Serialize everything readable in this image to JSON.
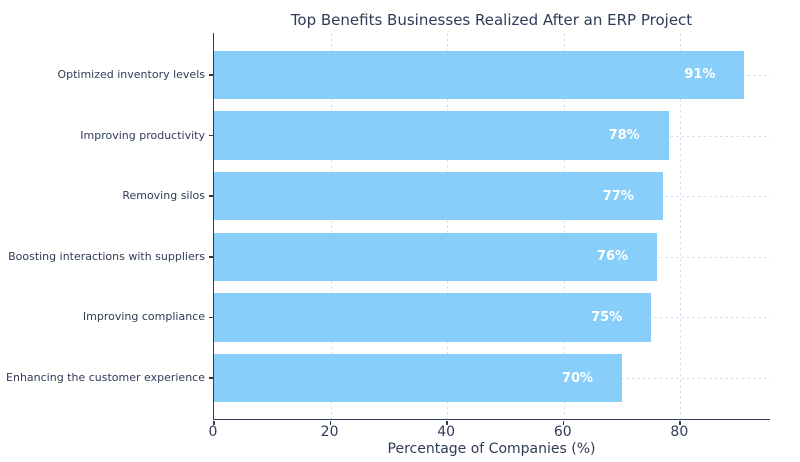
{
  "chart_data": {
    "type": "bar",
    "orientation": "horizontal",
    "title": "Top Benefits Businesses Realized After an ERP Project",
    "xlabel": "Percentage of Companies (%)",
    "categories": [
      "Optimized inventory levels",
      "Improving productivity",
      "Removing silos",
      "Boosting interactions with suppliers",
      "Improving compliance",
      "Enhancing the customer experience"
    ],
    "values": [
      91,
      78,
      77,
      76,
      75,
      70
    ],
    "value_labels": [
      "91%",
      "78%",
      "77%",
      "76%",
      "75%",
      "70%"
    ],
    "xticks": [
      0,
      20,
      40,
      60,
      80
    ],
    "xlim": [
      0,
      95.55
    ],
    "grid": "dashed, both axes, behind bars",
    "legend": "none",
    "colors": {
      "bar": "#87CEFA",
      "text": "#2f3b57",
      "axis": "#2f3b57",
      "grid": "#d2def2",
      "bar_label": "#ffffff",
      "background": "#ffffff"
    }
  }
}
